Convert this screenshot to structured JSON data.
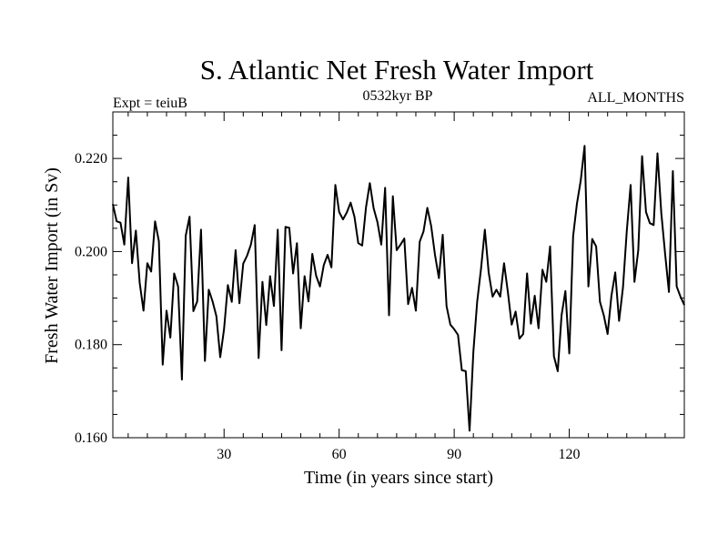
{
  "chart_data": {
    "type": "line",
    "title": "S. Atlantic Net Fresh Water Import",
    "subtitle_left": "Expt = teiuB",
    "subtitle_center": "0532kyr BP",
    "subtitle_right": "ALL_MONTHS",
    "xlabel": "Time (in years since start)",
    "ylabel": "Fresh Water Import (in Sv)",
    "xlim": [
      1,
      150
    ],
    "ylim": [
      0.16,
      0.23
    ],
    "xticks": [
      30,
      60,
      90,
      120
    ],
    "xtick_labels": [
      "30",
      "60",
      "90",
      "120"
    ],
    "yticks": [
      0.16,
      0.18,
      0.2,
      0.22
    ],
    "ytick_labels": [
      "0.160",
      "0.180",
      "0.200",
      "0.220"
    ],
    "grid": false,
    "series": [
      {
        "name": "Net Fresh Water Import",
        "x": [
          1,
          2,
          3,
          4,
          5,
          6,
          7,
          8,
          9,
          10,
          11,
          12,
          13,
          14,
          15,
          16,
          17,
          18,
          19,
          20,
          21,
          22,
          23,
          24,
          25,
          26,
          27,
          28,
          29,
          30,
          31,
          32,
          33,
          34,
          35,
          36,
          37,
          38,
          39,
          40,
          41,
          42,
          43,
          44,
          45,
          46,
          47,
          48,
          49,
          50,
          51,
          52,
          53,
          54,
          55,
          56,
          57,
          58,
          59,
          60,
          61,
          62,
          63,
          64,
          65,
          66,
          67,
          68,
          69,
          70,
          71,
          72,
          73,
          74,
          75,
          76,
          77,
          78,
          79,
          80,
          81,
          82,
          83,
          84,
          85,
          86,
          87,
          88,
          89,
          90,
          91,
          92,
          93,
          94,
          95,
          96,
          97,
          98,
          99,
          100,
          101,
          102,
          103,
          104,
          105,
          106,
          107,
          108,
          109,
          110,
          111,
          112,
          113,
          114,
          115,
          116,
          117,
          118,
          119,
          120,
          121,
          122,
          123,
          124,
          125,
          126,
          127,
          128,
          129,
          130,
          131,
          132,
          133,
          134,
          135,
          136,
          137,
          138,
          139,
          140,
          141,
          142,
          143,
          144,
          145,
          146,
          147,
          148,
          149,
          150
        ],
        "values": [
          0.2102,
          0.2065,
          0.2062,
          0.2015,
          0.2159,
          0.1975,
          0.2045,
          0.1933,
          0.1873,
          0.1975,
          0.1957,
          0.2065,
          0.2022,
          0.1757,
          0.1873,
          0.1815,
          0.1953,
          0.1925,
          0.1725,
          0.2034,
          0.2075,
          0.1872,
          0.1893,
          0.2047,
          0.1765,
          0.1918,
          0.1893,
          0.1861,
          0.1773,
          0.1833,
          0.1928,
          0.1892,
          0.2003,
          0.1889,
          0.1974,
          0.1991,
          0.2015,
          0.2057,
          0.1771,
          0.1935,
          0.1842,
          0.1947,
          0.1883,
          0.2047,
          0.1788,
          0.2053,
          0.2051,
          0.1953,
          0.2018,
          0.1835,
          0.1947,
          0.1893,
          0.1995,
          0.1948,
          0.1925,
          0.1971,
          0.1993,
          0.1966,
          0.2143,
          0.2085,
          0.2069,
          0.2084,
          0.2105,
          0.2075,
          0.2018,
          0.2013,
          0.2095,
          0.2147,
          0.2093,
          0.2063,
          0.2015,
          0.2137,
          0.1863,
          0.2119,
          0.2003,
          0.2015,
          0.2028,
          0.1887,
          0.1922,
          0.1873,
          0.2021,
          0.2043,
          0.2094,
          0.2055,
          0.1993,
          0.1943,
          0.2036,
          0.1883,
          0.1843,
          0.1833,
          0.1821,
          0.1745,
          0.1743,
          0.1615,
          0.1785,
          0.1893,
          0.1963,
          0.2047,
          0.1955,
          0.1903,
          0.1918,
          0.1903,
          0.1975,
          0.1913,
          0.1843,
          0.1871,
          0.1813,
          0.1823,
          0.1953,
          0.1845,
          0.1905,
          0.1835,
          0.1961,
          0.1935,
          0.2011,
          0.1775,
          0.1743,
          0.1863,
          0.1915,
          0.1781,
          0.2033,
          0.2103,
          0.2153,
          0.2227,
          0.1925,
          0.2027,
          0.2011,
          0.1892,
          0.1863,
          0.1823,
          0.1905,
          0.1955,
          0.1851,
          0.1923,
          0.2045,
          0.2143,
          0.1935,
          0.2003,
          0.2205,
          0.2085,
          0.2061,
          0.2057,
          0.2211,
          0.2083,
          0.1995,
          0.1913,
          0.2173,
          0.1925,
          0.1903,
          0.1885
        ]
      }
    ]
  }
}
